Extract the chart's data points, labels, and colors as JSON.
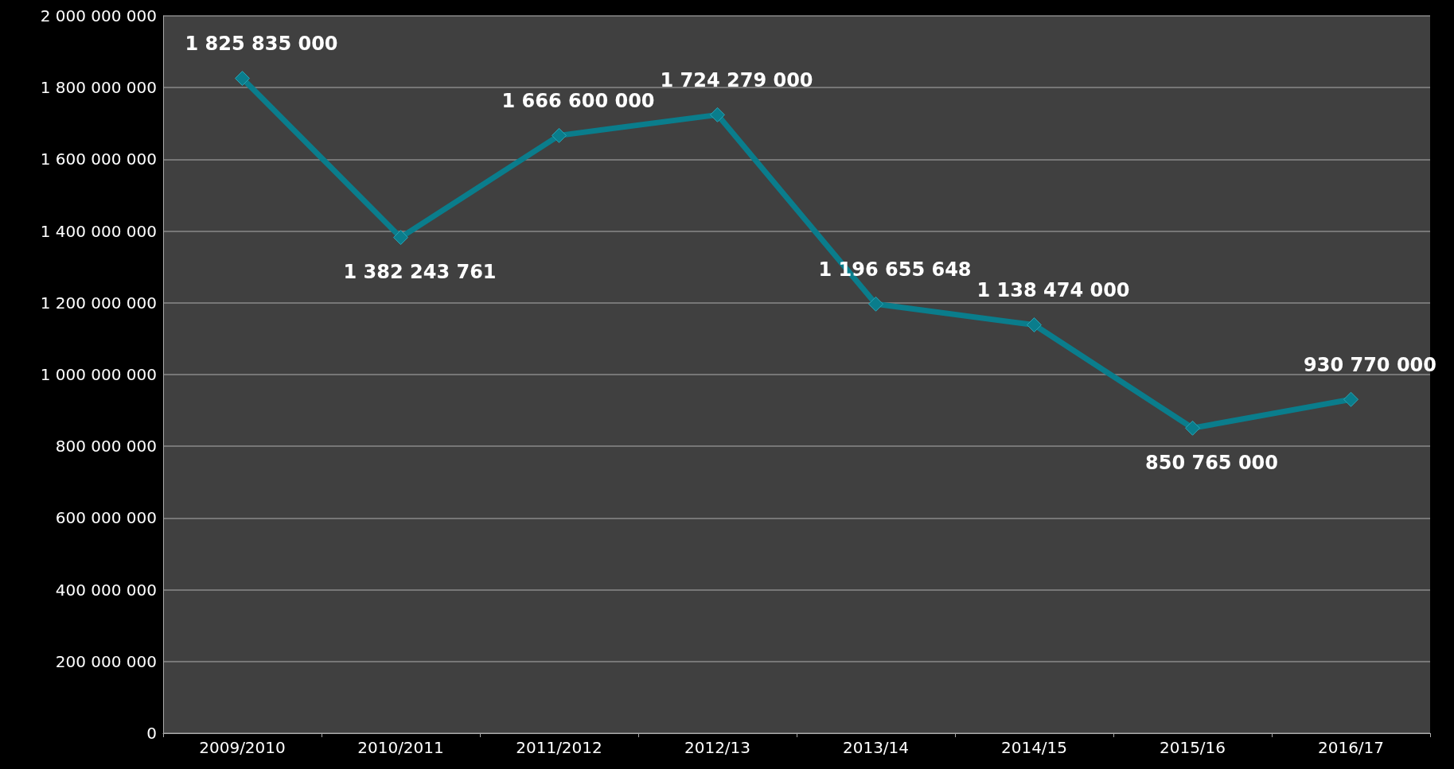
{
  "chart_data": {
    "type": "line",
    "categories": [
      "2009/2010",
      "2010/2011",
      "2011/2012",
      "2012/13",
      "2013/14",
      "2014/15",
      "2015/16",
      "2016/17"
    ],
    "series": [
      {
        "color": "#0a7d8c",
        "values": [
          1825835000,
          1382243761,
          1666600000,
          1724279000,
          1196655648,
          1138474000,
          850765000,
          930770000
        ],
        "value_labels": [
          "1 825 835 000",
          "1 382 243 761",
          "1 666 600 000",
          "1 724 279 000",
          "1 196 655 648",
          "1 138 474 000",
          "850 765 000",
          "930 770 000"
        ]
      }
    ],
    "ylim": [
      0,
      2000000000
    ],
    "yticks": [
      0,
      {
        "value": 200000000,
        "label": "200 000 000"
      },
      {
        "value": 400000000,
        "label": "400 000 000"
      },
      {
        "value": 600000000,
        "label": "600 000 000"
      },
      {
        "value": 800000000,
        "label": "800 000 000"
      },
      {
        "value": 1000000000,
        "label": "1 000 000 000"
      },
      {
        "value": 1200000000,
        "label": "1 200 000 000"
      },
      {
        "value": 1400000000,
        "label": "1 400 000 000"
      },
      {
        "value": 1600000000,
        "label": "1 600 000 000"
      },
      {
        "value": 1800000000,
        "label": "1 800 000 000"
      },
      {
        "value": 2000000000,
        "label": "2 000 000 000"
      }
    ],
    "grid": "y",
    "marker": "diamond",
    "line_style": "solid"
  }
}
